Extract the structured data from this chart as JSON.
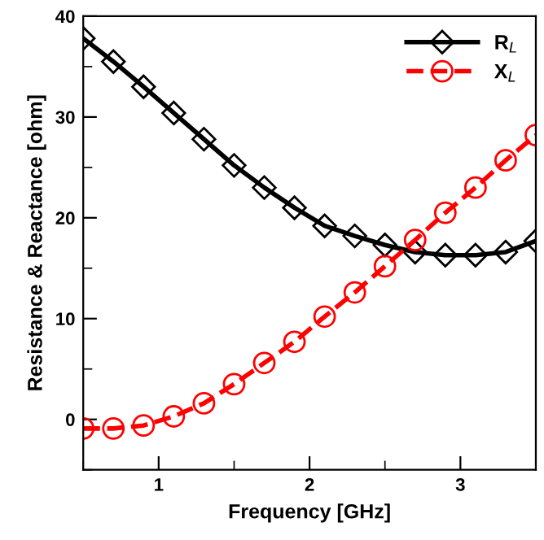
{
  "chart_data": {
    "type": "line",
    "xlabel": "Frequency [GHz]",
    "ylabel": "Resistance & Reactance [ohm]",
    "x": [
      0.5,
      0.7,
      0.9,
      1.1,
      1.3,
      1.5,
      1.7,
      1.9,
      2.1,
      2.3,
      2.5,
      2.7,
      2.9,
      3.1,
      3.3,
      3.5
    ],
    "series": [
      {
        "name": "R$_{L}$",
        "color": "#000000",
        "marker": "diamond",
        "line_style": "solid",
        "values": [
          37.8,
          35.5,
          33.0,
          30.4,
          27.8,
          25.2,
          23.0,
          21.0,
          19.2,
          18.2,
          17.3,
          16.6,
          16.3,
          16.3,
          16.6,
          17.7
        ]
      },
      {
        "name": "X$_{L}$",
        "color": "#ff0000",
        "marker": "circle",
        "line_style": "dashed",
        "values": [
          -0.9,
          -0.9,
          -0.6,
          0.3,
          1.6,
          3.5,
          5.6,
          7.7,
          10.2,
          12.6,
          15.2,
          17.8,
          20.5,
          23.0,
          25.7,
          28.2
        ]
      }
    ],
    "xlim": [
      0.5,
      3.5
    ],
    "xticks": [
      1,
      2,
      3
    ],
    "ylim": [
      -5,
      40
    ],
    "yticks": [
      0,
      10,
      20,
      30,
      40
    ],
    "grid": false,
    "legend": "top right"
  }
}
